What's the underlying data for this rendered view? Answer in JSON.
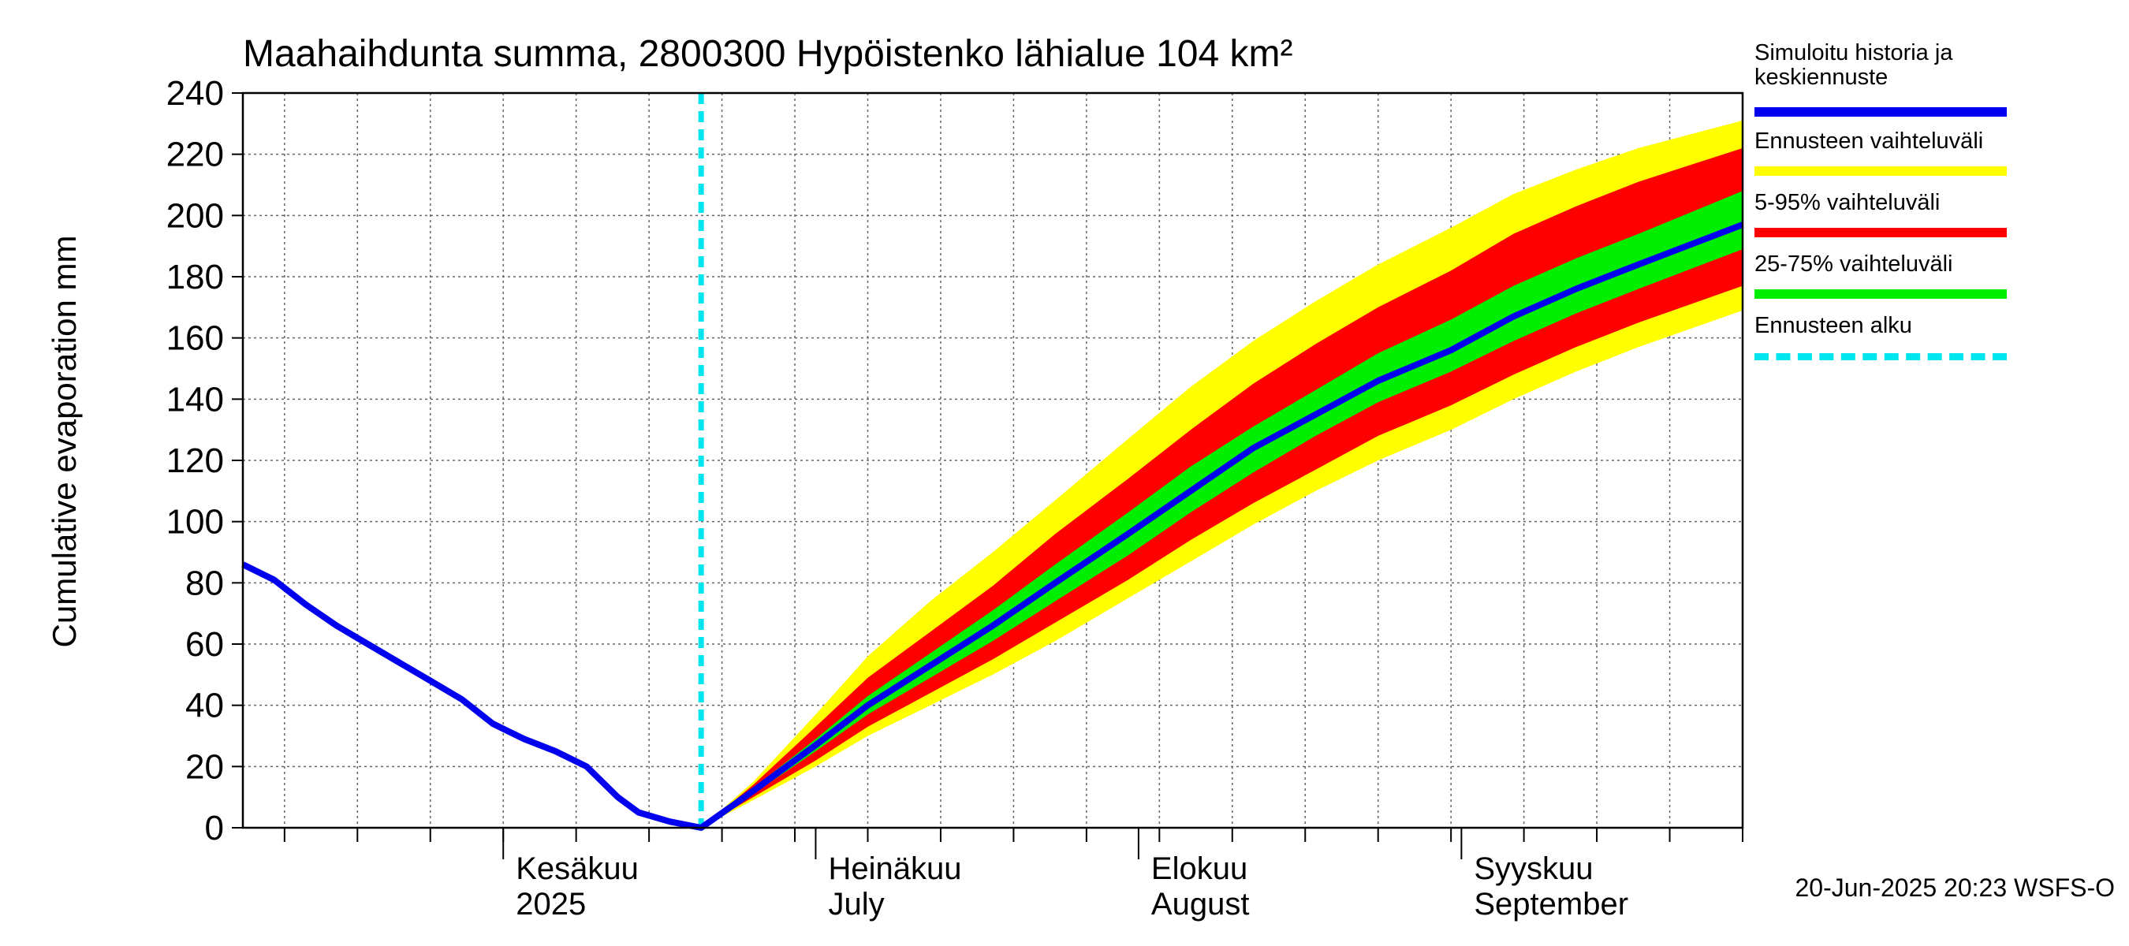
{
  "chart_data": {
    "type": "area",
    "title": "Maahaihdunta summa, 2800300 Hypöistenko lähialue 104 km²",
    "ylabel": "Cumulative evaporation   mm",
    "xlabel": "",
    "ylim": [
      0,
      240
    ],
    "yticks": [
      "0",
      "20",
      "40",
      "60",
      "80",
      "100",
      "120",
      "140",
      "160",
      "180",
      "200",
      "220",
      "240"
    ],
    "xlim": [
      "2025-05-07",
      "2025-09-28"
    ],
    "month_labels": [
      {
        "fi": "Kesäkuu",
        "en": "2025",
        "date": "2025-06-01"
      },
      {
        "fi": "Heinäkuu",
        "en": "July",
        "date": "2025-07-01"
      },
      {
        "fi": "Elokuu",
        "en": "August",
        "date": "2025-08-01"
      },
      {
        "fi": "Syyskuu",
        "en": "September",
        "date": "2025-09-01"
      }
    ],
    "forecast_start": "2025-06-20",
    "grid": true,
    "history": {
      "name": "Simuloitu historia ja keskiennuste",
      "x": [
        "2025-05-07",
        "2025-05-10",
        "2025-05-13",
        "2025-05-16",
        "2025-05-19",
        "2025-05-22",
        "2025-05-25",
        "2025-05-28",
        "2025-05-31",
        "2025-06-03",
        "2025-06-06",
        "2025-06-09",
        "2025-06-12",
        "2025-06-14",
        "2025-06-17",
        "2025-06-20"
      ],
      "y": [
        86,
        81,
        73,
        66,
        60,
        54,
        48,
        42,
        34,
        29,
        25,
        20,
        10,
        5,
        2,
        0
      ]
    },
    "forecast": {
      "x": [
        "2025-06-20",
        "2025-06-25",
        "2025-07-01",
        "2025-07-06",
        "2025-07-12",
        "2025-07-18",
        "2025-07-24",
        "2025-07-31",
        "2025-08-06",
        "2025-08-12",
        "2025-08-18",
        "2025-08-24",
        "2025-08-31",
        "2025-09-06",
        "2025-09-12",
        "2025-09-18",
        "2025-09-28"
      ],
      "median": [
        0,
        12,
        27,
        40,
        53,
        66,
        80,
        96,
        110,
        124,
        135,
        146,
        156,
        167,
        176,
        184,
        197
      ],
      "p25": [
        0,
        11,
        25,
        37,
        49,
        61,
        74,
        89,
        103,
        116,
        128,
        139,
        149,
        159,
        168,
        176,
        189
      ],
      "p75": [
        0,
        13,
        29,
        43,
        57,
        71,
        86,
        103,
        118,
        131,
        143,
        155,
        166,
        177,
        186,
        194,
        208
      ],
      "p05": [
        0,
        10,
        22,
        33,
        44,
        55,
        67,
        81,
        94,
        106,
        117,
        128,
        138,
        148,
        157,
        165,
        177
      ],
      "p95": [
        0,
        14,
        33,
        49,
        64,
        79,
        96,
        114,
        130,
        145,
        158,
        170,
        182,
        194,
        203,
        211,
        222
      ],
      "min": [
        0,
        9,
        20,
        30,
        40,
        50,
        61,
        75,
        87,
        99,
        110,
        120,
        130,
        140,
        149,
        157,
        169
      ],
      "max": [
        0,
        15,
        37,
        56,
        74,
        90,
        107,
        127,
        144,
        159,
        172,
        184,
        196,
        207,
        215,
        222,
        231
      ]
    },
    "legend": [
      {
        "label": "Simuloitu historia ja\nkeskiennuste",
        "color": "#0000ee",
        "style": "solid"
      },
      {
        "label": "Ennusteen vaihteluväli",
        "color": "#ffff00",
        "style": "solid"
      },
      {
        "label": "5-95% vaihteluväli",
        "color": "#ff0000",
        "style": "solid"
      },
      {
        "label": "25-75% vaihteluväli",
        "color": "#00ee00",
        "style": "solid"
      },
      {
        "label": "Ennusteen alku",
        "color": "#00e5ee",
        "style": "dashed"
      }
    ]
  },
  "footer": "20-Jun-2025 20:23 WSFS-O"
}
